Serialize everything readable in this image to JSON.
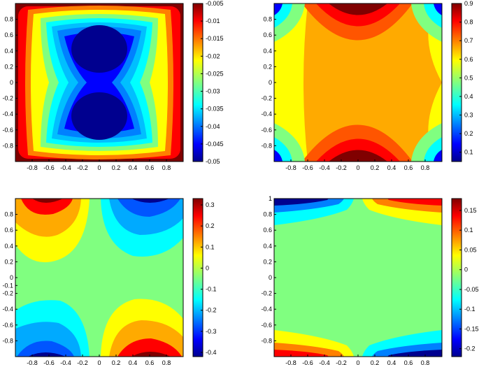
{
  "chart_data": [
    {
      "type": "heatmap",
      "subtype": "filled-contour",
      "xticks": [
        "-0.8",
        "-0.6",
        "-0.4",
        "-0.2",
        "0",
        "0.2",
        "0.4",
        "0.6",
        "0.8"
      ],
      "yticks": [
        "0.8",
        "0.6",
        "0.4",
        "0.2",
        "0",
        "-0.2",
        "-0.4",
        "-0.6",
        "-0.8"
      ],
      "xlim": [
        -1,
        1
      ],
      "ylim": [
        -1,
        1
      ],
      "colorbar": {
        "ticks": [
          "-0.005",
          "-0.01",
          "-0.015",
          "-0.02",
          "-0.025",
          "-0.03",
          "-0.035",
          "-0.04",
          "-0.045",
          "-0.05"
        ],
        "range": [
          -0.05,
          -0.005
        ]
      },
      "levels": [
        {
          "level": -0.05,
          "color": "#00008f",
          "region": "two lobes centered near (0, 0.55) and (0, -0.55)"
        },
        {
          "level": -0.045,
          "color": "#0000ff",
          "region": "hourglass core"
        },
        {
          "level": -0.03,
          "color": "#00bfff",
          "region": "ring"
        },
        {
          "level": -0.02,
          "color": "#ffff00",
          "region": "ring"
        },
        {
          "level": -0.005,
          "color": "#800000",
          "region": "boundary"
        }
      ]
    },
    {
      "type": "heatmap",
      "subtype": "filled-contour",
      "xticks": [
        "-0.8",
        "-0.6",
        "-0.4",
        "-0.2",
        "0",
        "0.2",
        "0.4",
        "0.6",
        "0.8"
      ],
      "yticks": [
        "0.8",
        "0.6",
        "0.4",
        "0.2",
        "0",
        "-0.2",
        "-0.4",
        "-0.6",
        "-0.8"
      ],
      "xlim": [
        -1,
        1
      ],
      "ylim": [
        -1,
        1
      ],
      "colorbar": {
        "ticks": [
          "0.9",
          "0.8",
          "0.7",
          "0.6",
          "0.5",
          "0.4",
          "0.3",
          "0.2",
          "0.1"
        ],
        "range": [
          0.05,
          0.9
        ]
      },
      "levels": [
        {
          "level": 0.9,
          "color": "#800000",
          "region": "top and bottom edge centers"
        },
        {
          "level": 0.65,
          "color": "#ffaa00",
          "region": "central band"
        },
        {
          "level": 0.55,
          "color": "#ffff00",
          "region": "left and right side bands"
        },
        {
          "level": 0.1,
          "color": "#0000ff",
          "region": "corners"
        }
      ]
    },
    {
      "type": "heatmap",
      "subtype": "filled-contour",
      "xticks": [
        "-0.8",
        "-0.6",
        "-0.4",
        "-0.2",
        "0",
        "0.2",
        "0.4",
        "0.6",
        "0.8"
      ],
      "yticks": [
        "0.8",
        "0.6",
        "0.4",
        "0.2",
        "0",
        "-0.1",
        "-0.2",
        "-0.4",
        "-0.6",
        "-0.8"
      ],
      "xlim": [
        -1,
        1
      ],
      "ylim": [
        -1,
        1
      ],
      "colorbar": {
        "ticks": [
          "0.3",
          "0.2",
          "0.1",
          "0",
          "-0.1",
          "-0.2",
          "-0.3",
          "-0.4"
        ],
        "range": [
          -0.42,
          0.33
        ]
      },
      "levels": [
        {
          "level": 0.33,
          "color": "#800000",
          "region": "top-left and bottom-right lobes"
        },
        {
          "level": 0.0,
          "color": "#80ff80",
          "region": "background"
        },
        {
          "level": -0.42,
          "color": "#00008f",
          "region": "top-right and bottom-left lobes"
        }
      ]
    },
    {
      "type": "heatmap",
      "subtype": "filled-contour",
      "xticks": [
        "-0.8",
        "-0.6",
        "-0.4",
        "-0.2",
        "0",
        "0.2",
        "0.4",
        "0.6",
        "0.8"
      ],
      "yticks": [
        "1",
        "0.8",
        "0.6",
        "0.4",
        "0.2",
        "0",
        "-0.2",
        "-0.4",
        "-0.6",
        "-0.8"
      ],
      "xlim": [
        -1,
        1
      ],
      "ylim": [
        -1,
        1
      ],
      "colorbar": {
        "ticks": [
          "0.15",
          "0.1",
          "0.05",
          "0",
          "-0.05",
          "-0.1",
          "-0.15",
          "-0.2"
        ],
        "range": [
          -0.22,
          0.18
        ]
      },
      "levels": [
        {
          "level": 0.18,
          "color": "#800000",
          "region": "top-right and bottom-left edges"
        },
        {
          "level": 0.0,
          "color": "#80ff80",
          "region": "background"
        },
        {
          "level": -0.22,
          "color": "#00008f",
          "region": "top-left and bottom-right edges"
        }
      ]
    }
  ]
}
